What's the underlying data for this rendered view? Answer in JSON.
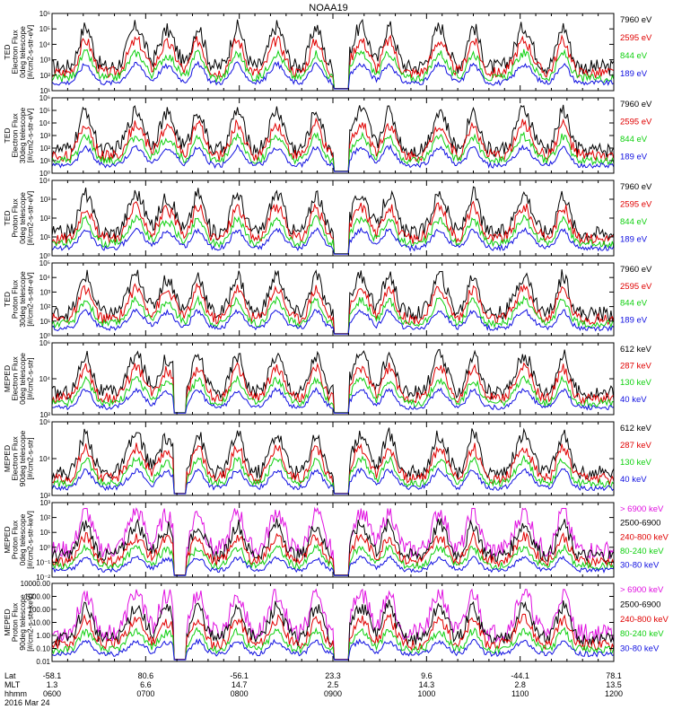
{
  "title": "NOAA19",
  "colors": {
    "blue": "#1010e0",
    "red": "#e00000",
    "green": "#10d010",
    "black": "#000000",
    "magenta": "#e010e0"
  },
  "chart_data": {
    "type": "line",
    "title": "NOAA19",
    "x_axis": {
      "row_labels": [
        "Lat",
        "MLT",
        "hhmm",
        "2016 Mar 24"
      ],
      "lat": [
        "-58.1",
        "80.6",
        "-56.1",
        "23.3",
        "9.6",
        "-44.1",
        "78.1"
      ],
      "mlt": [
        "1.3",
        "6.6",
        "14.7",
        "2.5",
        "14.3",
        "2.8",
        "13.5"
      ],
      "hhmm": [
        "0600",
        "0700",
        "0800",
        "0900",
        "1000",
        "1100",
        "1200"
      ]
    },
    "panels": [
      {
        "ylabel": [
          "TED",
          "Electron Flux",
          "0deg telescope",
          "[#/cm2-s-str-eV]"
        ],
        "yticks": [
          "10¹",
          "10²",
          "10³",
          "10⁴",
          "10⁵",
          "10⁶"
        ],
        "ylog": true,
        "series": [
          {
            "name": "7960 eV",
            "color": "black"
          },
          {
            "name": "2595 eV",
            "color": "red"
          },
          {
            "name": "844 eV",
            "color": "green"
          },
          {
            "name": "189 eV",
            "color": "blue"
          }
        ]
      },
      {
        "ylabel": [
          "TED",
          "Electron Flux",
          "30deg telescope",
          "[#/cm2-s-str-eV]"
        ],
        "yticks": [
          "10⁰",
          "10¹",
          "10²",
          "10³",
          "10⁴",
          "10⁵",
          "10⁶"
        ],
        "ylog": true,
        "series": [
          {
            "name": "7960 eV",
            "color": "black"
          },
          {
            "name": "2595 eV",
            "color": "red"
          },
          {
            "name": "844 eV",
            "color": "green"
          },
          {
            "name": "189 eV",
            "color": "blue"
          }
        ]
      },
      {
        "ylabel": [
          "TED",
          "Proton Flux",
          "0deg telescope",
          "[#/cm2-s-str-eV]"
        ],
        "yticks": [
          "10⁰",
          "10¹",
          "10²",
          "10³",
          "10⁴"
        ],
        "ylog": true,
        "series": [
          {
            "name": "7960 eV",
            "color": "black"
          },
          {
            "name": "2595 eV",
            "color": "red"
          },
          {
            "name": "844 eV",
            "color": "green"
          },
          {
            "name": "189 eV",
            "color": "blue"
          }
        ]
      },
      {
        "ylabel": [
          "TED",
          "Proton Flux",
          "30deg telescope",
          "[#/cm2-s-str-eV]"
        ],
        "yticks": [
          "10⁰",
          "10¹",
          "10²",
          "10³",
          "10⁴",
          "10⁵"
        ],
        "ylog": true,
        "series": [
          {
            "name": "7960 eV",
            "color": "black"
          },
          {
            "name": "2595 eV",
            "color": "red"
          },
          {
            "name": "844 eV",
            "color": "green"
          },
          {
            "name": "189 eV",
            "color": "blue"
          }
        ]
      },
      {
        "ylabel": [
          "MEPED",
          "Electron Flux",
          "0deg telescope",
          "[#/cm2-s-str]"
        ],
        "yticks": [
          "10²",
          "10⁴",
          "10⁶"
        ],
        "ylog": true,
        "series": [
          {
            "name": "612 keV",
            "color": "black"
          },
          {
            "name": "287 keV",
            "color": "red"
          },
          {
            "name": "130 keV",
            "color": "green"
          },
          {
            "name": "40 keV",
            "color": "blue"
          }
        ]
      },
      {
        "ylabel": [
          "MEPED",
          "Electron Flux",
          "90deg telescope",
          "[#/cm2-s-str]"
        ],
        "yticks": [
          "10²",
          "10⁴",
          "10⁶"
        ],
        "ylog": true,
        "series": [
          {
            "name": "612 keV",
            "color": "black"
          },
          {
            "name": "287 keV",
            "color": "red"
          },
          {
            "name": "130 keV",
            "color": "green"
          },
          {
            "name": "40 keV",
            "color": "blue"
          }
        ]
      },
      {
        "ylabel": [
          "MEPED",
          "Proton Flux",
          "0deg telescope",
          "[#/cm2-s-str-keV]"
        ],
        "yticks": [
          "10⁻²",
          "10⁻¹",
          "10⁰",
          "10¹",
          "10²",
          "10³"
        ],
        "ylog": true,
        "series": [
          {
            "name": "> 6900 keV",
            "color": "magenta"
          },
          {
            "name": "2500-6900",
            "color": "black"
          },
          {
            "name": "240-800 keV",
            "color": "red"
          },
          {
            "name": "80-240 keV",
            "color": "green"
          },
          {
            "name": "30-80 keV",
            "color": "blue"
          }
        ]
      },
      {
        "ylabel": [
          "MEPED",
          "Proton Flux",
          "90deg telescope",
          "[#/cm2-s-str-keV]"
        ],
        "yticks": [
          "0.01",
          "0.10",
          "1.00",
          "10.00",
          "100.00",
          "1000.00",
          "10000.00"
        ],
        "ylog": true,
        "series": [
          {
            "name": "> 6900 keV",
            "color": "magenta"
          },
          {
            "name": "2500-6900",
            "color": "black"
          },
          {
            "name": "240-800 keV",
            "color": "red"
          },
          {
            "name": "80-240 keV",
            "color": "green"
          },
          {
            "name": "30-80 keV",
            "color": "blue"
          }
        ]
      }
    ]
  }
}
